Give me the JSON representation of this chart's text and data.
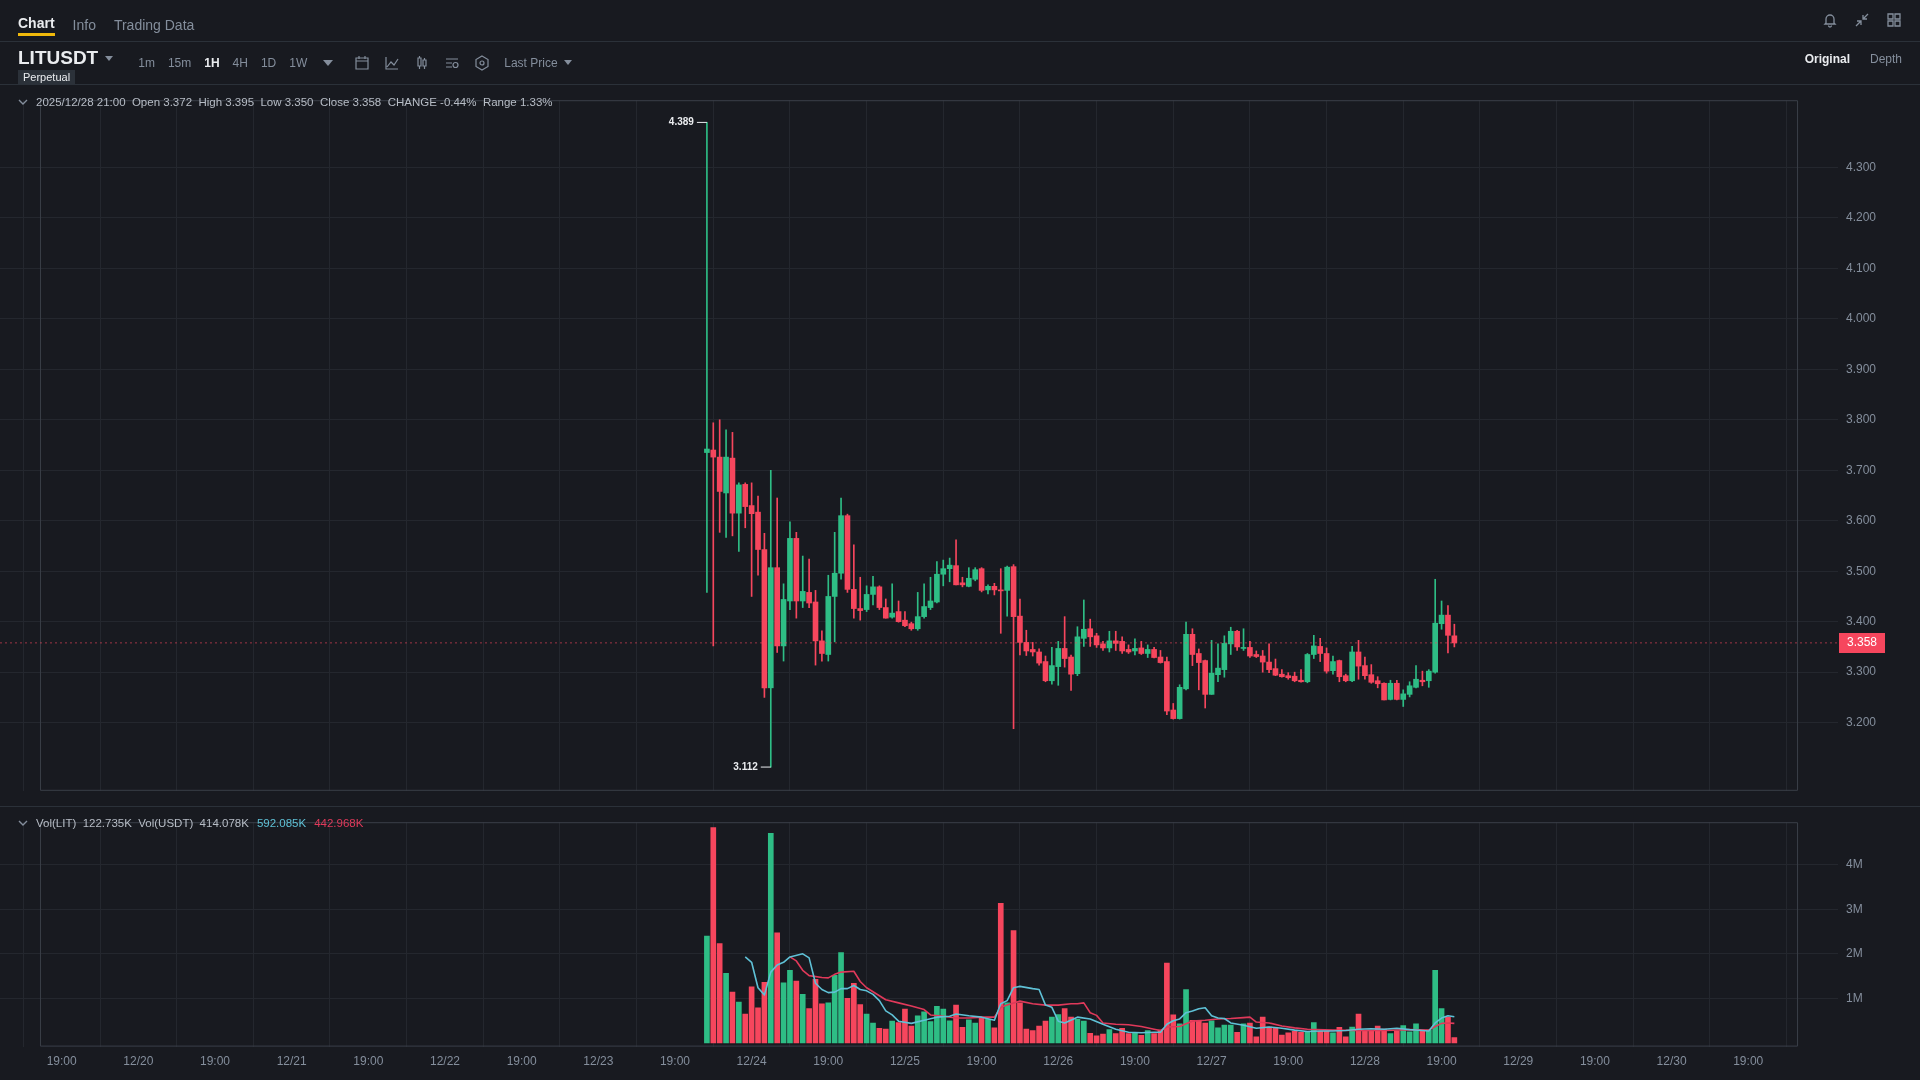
{
  "chart_data": [
    {
      "type": "candlestick",
      "title": "LITUSDT",
      "subtitle": "2025/12/28 21:00  Open 3.372  High 3.395  Low 3.350  Close 3.358  CHANGE -0.44%  Range 1.33%",
      "annotations": [
        "Chart",
        "Info",
        "Trading Data",
        "1m",
        "15m",
        "1H",
        "4H",
        "1D",
        "1W",
        "Perpetual",
        "Last Price",
        "Original",
        "Depth",
        {
          "text": "4.389",
          "x": "2025-12-24T00:00",
          "y": 4.389
        },
        {
          "text": "3.112",
          "x": "2025-12-24T10:00",
          "y": 3.112
        }
      ],
      "x": [
        "2025-12-24T00:00",
        "2025-12-24T01:00",
        "2025-12-24T02:00",
        "2025-12-24T03:00",
        "2025-12-24T04:00",
        "2025-12-24T05:00",
        "2025-12-24T06:00",
        "2025-12-24T07:00",
        "2025-12-24T08:00",
        "2025-12-24T09:00",
        "2025-12-24T10:00",
        "2025-12-24T11:00",
        "2025-12-24T12:00",
        "2025-12-24T13:00",
        "2025-12-24T14:00",
        "2025-12-24T15:00",
        "2025-12-24T16:00",
        "2025-12-24T17:00",
        "2025-12-24T18:00",
        "2025-12-24T19:00",
        "2025-12-24T20:00",
        "2025-12-24T21:00",
        "2025-12-24T22:00",
        "2025-12-24T23:00",
        "2025-12-25T00:00",
        "2025-12-25T01:00",
        "2025-12-25T02:00",
        "2025-12-25T03:00",
        "2025-12-25T04:00",
        "2025-12-25T05:00",
        "2025-12-25T06:00",
        "2025-12-25T07:00",
        "2025-12-25T08:00",
        "2025-12-25T09:00",
        "2025-12-25T10:00",
        "2025-12-25T11:00",
        "2025-12-25T12:00",
        "2025-12-25T13:00",
        "2025-12-25T14:00",
        "2025-12-25T15:00",
        "2025-12-25T16:00",
        "2025-12-25T17:00",
        "2025-12-25T18:00",
        "2025-12-25T19:00",
        "2025-12-25T20:00",
        "2025-12-25T21:00",
        "2025-12-25T22:00",
        "2025-12-25T23:00",
        "2025-12-26T00:00",
        "2025-12-26T01:00",
        "2025-12-26T02:00",
        "2025-12-26T03:00",
        "2025-12-26T04:00",
        "2025-12-26T05:00",
        "2025-12-26T06:00",
        "2025-12-26T07:00",
        "2025-12-26T08:00",
        "2025-12-26T09:00",
        "2025-12-26T10:00",
        "2025-12-26T11:00",
        "2025-12-26T12:00",
        "2025-12-26T13:00",
        "2025-12-26T14:00",
        "2025-12-26T15:00",
        "2025-12-26T16:00",
        "2025-12-26T17:00",
        "2025-12-26T18:00",
        "2025-12-26T19:00",
        "2025-12-26T20:00",
        "2025-12-26T21:00",
        "2025-12-26T22:00",
        "2025-12-26T23:00",
        "2025-12-27T00:00",
        "2025-12-27T01:00",
        "2025-12-27T02:00",
        "2025-12-27T03:00",
        "2025-12-27T04:00",
        "2025-12-27T05:00",
        "2025-12-27T06:00",
        "2025-12-27T07:00",
        "2025-12-27T08:00",
        "2025-12-27T09:00",
        "2025-12-27T10:00",
        "2025-12-27T11:00",
        "2025-12-27T12:00",
        "2025-12-27T13:00",
        "2025-12-27T14:00",
        "2025-12-27T15:00",
        "2025-12-27T16:00",
        "2025-12-27T17:00",
        "2025-12-27T18:00",
        "2025-12-27T19:00",
        "2025-12-27T20:00",
        "2025-12-27T21:00",
        "2025-12-27T22:00",
        "2025-12-27T23:00",
        "2025-12-28T00:00",
        "2025-12-28T01:00",
        "2025-12-28T02:00",
        "2025-12-28T03:00",
        "2025-12-28T04:00",
        "2025-12-28T05:00",
        "2025-12-28T06:00",
        "2025-12-28T07:00",
        "2025-12-28T08:00",
        "2025-12-28T09:00",
        "2025-12-28T10:00",
        "2025-12-28T11:00",
        "2025-12-28T12:00",
        "2025-12-28T13:00",
        "2025-12-28T14:00",
        "2025-12-28T15:00",
        "2025-12-28T16:00",
        "2025-12-28T17:00",
        "2025-12-28T18:00",
        "2025-12-28T19:00",
        "2025-12-28T20:00",
        "2025-12-28T21:00"
      ],
      "ohlc": [
        [
          3.735,
          4.389,
          3.458,
          3.742
        ],
        [
          3.74,
          3.794,
          3.352,
          3.726
        ],
        [
          3.726,
          3.8,
          3.577,
          3.658
        ],
        [
          3.655,
          3.78,
          3.567,
          3.726
        ],
        [
          3.724,
          3.775,
          3.57,
          3.615
        ],
        [
          3.615,
          3.675,
          3.539,
          3.671
        ],
        [
          3.672,
          3.675,
          3.586,
          3.628
        ],
        [
          3.63,
          3.675,
          3.45,
          3.614
        ],
        [
          3.617,
          3.649,
          3.492,
          3.543
        ],
        [
          3.543,
          3.575,
          3.25,
          3.269
        ],
        [
          3.269,
          3.7,
          3.112,
          3.507
        ],
        [
          3.507,
          3.645,
          3.339,
          3.352
        ],
        [
          3.352,
          3.475,
          3.322,
          3.444
        ],
        [
          3.441,
          3.598,
          3.424,
          3.565
        ],
        [
          3.565,
          3.577,
          3.407,
          3.441
        ],
        [
          3.441,
          3.53,
          3.428,
          3.46
        ],
        [
          3.458,
          3.524,
          3.428,
          3.437
        ],
        [
          3.439,
          3.462,
          3.314,
          3.362
        ],
        [
          3.362,
          3.382,
          3.322,
          3.337
        ],
        [
          3.335,
          3.492,
          3.322,
          3.45
        ],
        [
          3.45,
          3.577,
          3.36,
          3.496
        ],
        [
          3.496,
          3.645,
          3.484,
          3.61
        ],
        [
          3.61,
          3.613,
          3.458,
          3.464
        ],
        [
          3.464,
          3.552,
          3.407,
          3.426
        ],
        [
          3.426,
          3.488,
          3.403,
          3.422
        ],
        [
          3.424,
          3.471,
          3.42,
          3.454
        ],
        [
          3.454,
          3.49,
          3.433,
          3.469
        ],
        [
          3.469,
          3.471,
          3.424,
          3.428
        ],
        [
          3.428,
          3.445,
          3.407,
          3.407
        ],
        [
          3.409,
          3.475,
          3.407,
          3.417
        ],
        [
          3.42,
          3.441,
          3.399,
          3.4
        ],
        [
          3.403,
          3.42,
          3.39,
          3.392
        ],
        [
          3.396,
          3.399,
          3.383,
          3.386
        ],
        [
          3.386,
          3.458,
          3.383,
          3.41
        ],
        [
          3.41,
          3.475,
          3.407,
          3.43
        ],
        [
          3.428,
          3.488,
          3.424,
          3.441
        ],
        [
          3.439,
          3.519,
          3.437,
          3.494
        ],
        [
          3.494,
          3.522,
          3.471,
          3.505
        ],
        [
          3.505,
          3.526,
          3.479,
          3.512
        ],
        [
          3.511,
          3.562,
          3.473,
          3.473
        ],
        [
          3.477,
          3.488,
          3.469,
          3.473
        ],
        [
          3.47,
          3.507,
          3.469,
          3.486
        ],
        [
          3.484,
          3.507,
          3.481,
          3.503
        ],
        [
          3.505,
          3.507,
          3.459,
          3.462
        ],
        [
          3.463,
          3.473,
          3.455,
          3.47
        ],
        [
          3.47,
          3.476,
          3.453,
          3.463
        ],
        [
          3.463,
          3.505,
          3.377,
          3.461
        ],
        [
          3.462,
          3.51,
          3.411,
          3.508
        ],
        [
          3.509,
          3.513,
          3.188,
          3.41
        ],
        [
          3.411,
          3.445,
          3.334,
          3.359
        ],
        [
          3.359,
          3.383,
          3.333,
          3.342
        ],
        [
          3.345,
          3.359,
          3.332,
          3.34
        ],
        [
          3.34,
          3.346,
          3.314,
          3.318
        ],
        [
          3.321,
          3.332,
          3.281,
          3.283
        ],
        [
          3.283,
          3.349,
          3.276,
          3.313
        ],
        [
          3.311,
          3.361,
          3.274,
          3.347
        ],
        [
          3.347,
          3.41,
          3.31,
          3.327
        ],
        [
          3.33,
          3.334,
          3.264,
          3.296
        ],
        [
          3.297,
          3.39,
          3.293,
          3.37
        ],
        [
          3.367,
          3.443,
          3.351,
          3.385
        ],
        [
          3.386,
          3.405,
          3.351,
          3.37
        ],
        [
          3.372,
          3.377,
          3.349,
          3.354
        ],
        [
          3.356,
          3.361,
          3.343,
          3.348
        ],
        [
          3.348,
          3.381,
          3.34,
          3.362
        ],
        [
          3.362,
          3.381,
          3.343,
          3.357
        ],
        [
          3.361,
          3.37,
          3.337,
          3.342
        ],
        [
          3.345,
          3.354,
          3.337,
          3.34
        ],
        [
          3.342,
          3.366,
          3.334,
          3.347
        ],
        [
          3.348,
          3.361,
          3.335,
          3.337
        ],
        [
          3.337,
          3.354,
          3.329,
          3.345
        ],
        [
          3.345,
          3.349,
          3.328,
          3.329
        ],
        [
          3.33,
          3.343,
          3.318,
          3.319
        ],
        [
          3.321,
          3.33,
          3.216,
          3.223
        ],
        [
          3.225,
          3.238,
          3.207,
          3.208
        ],
        [
          3.208,
          3.275,
          3.207,
          3.27
        ],
        [
          3.267,
          3.399,
          3.265,
          3.375
        ],
        [
          3.375,
          3.386,
          3.313,
          3.335
        ],
        [
          3.337,
          3.346,
          3.265,
          3.319
        ],
        [
          3.323,
          3.324,
          3.229,
          3.256
        ],
        [
          3.256,
          3.363,
          3.256,
          3.298
        ],
        [
          3.295,
          3.356,
          3.281,
          3.308
        ],
        [
          3.305,
          3.372,
          3.29,
          3.357
        ],
        [
          3.356,
          3.389,
          3.335,
          3.381
        ],
        [
          3.381,
          3.383,
          3.343,
          3.35
        ],
        [
          3.347,
          3.386,
          3.343,
          3.349
        ],
        [
          3.349,
          3.361,
          3.329,
          3.332
        ],
        [
          3.335,
          3.342,
          3.329,
          3.331
        ],
        [
          3.332,
          3.343,
          3.3,
          3.32
        ],
        [
          3.32,
          3.356,
          3.299,
          3.305
        ],
        [
          3.307,
          3.326,
          3.293,
          3.294
        ],
        [
          3.296,
          3.305,
          3.29,
          3.291
        ],
        [
          3.293,
          3.299,
          3.286,
          3.289
        ],
        [
          3.292,
          3.3,
          3.281,
          3.283
        ],
        [
          3.284,
          3.305,
          3.28,
          3.281
        ],
        [
          3.281,
          3.337,
          3.279,
          3.335
        ],
        [
          3.335,
          3.373,
          3.327,
          3.352
        ],
        [
          3.351,
          3.367,
          3.321,
          3.337
        ],
        [
          3.337,
          3.348,
          3.298,
          3.302
        ],
        [
          3.303,
          3.332,
          3.296,
          3.321
        ],
        [
          3.323,
          3.324,
          3.281,
          3.291
        ],
        [
          3.293,
          3.296,
          3.281,
          3.283
        ],
        [
          3.283,
          3.351,
          3.281,
          3.34
        ],
        [
          3.34,
          3.363,
          3.286,
          3.312
        ],
        [
          3.313,
          3.33,
          3.286,
          3.293
        ],
        [
          3.295,
          3.315,
          3.278,
          3.28
        ],
        [
          3.283,
          3.291,
          3.269,
          3.277
        ],
        [
          3.278,
          3.279,
          3.245,
          3.245
        ],
        [
          3.246,
          3.284,
          3.245,
          3.278
        ],
        [
          3.278,
          3.284,
          3.245,
          3.246
        ],
        [
          3.246,
          3.265,
          3.232,
          3.257
        ],
        [
          3.256,
          3.281,
          3.251,
          3.273
        ],
        [
          3.27,
          3.313,
          3.269,
          3.286
        ],
        [
          3.284,
          3.302,
          3.273,
          3.281
        ],
        [
          3.283,
          3.305,
          3.27,
          3.302
        ],
        [
          3.3,
          3.484,
          3.298,
          3.397
        ],
        [
          3.396,
          3.441,
          3.385,
          3.413
        ],
        [
          3.413,
          3.432,
          3.338,
          3.373
        ],
        [
          3.372,
          3.395,
          3.35,
          3.358
        ]
      ],
      "colors": [
        "#2ebd85",
        "#f6465d",
        "#f6465d",
        "#2ebd85",
        "#f6465d",
        "#2ebd85",
        "#f6465d",
        "#f6465d",
        "#f6465d",
        "#f6465d",
        "#2ebd85",
        "#f6465d",
        "#2ebd85",
        "#2ebd85",
        "#f6465d",
        "#2ebd85",
        "#f6465d",
        "#f6465d",
        "#f6465d",
        "#2ebd85",
        "#2ebd85",
        "#2ebd85",
        "#f6465d",
        "#f6465d",
        "#f6465d",
        "#2ebd85",
        "#2ebd85",
        "#f6465d",
        "#f6465d",
        "#2ebd85",
        "#f6465d",
        "#f6465d",
        "#f6465d",
        "#2ebd85",
        "#2ebd85",
        "#2ebd85",
        "#2ebd85",
        "#2ebd85",
        "#2ebd85",
        "#f6465d",
        "#f6465d",
        "#2ebd85",
        "#2ebd85",
        "#f6465d",
        "#2ebd85",
        "#f6465d",
        "#f6465d",
        "#2ebd85",
        "#f6465d",
        "#f6465d",
        "#f6465d",
        "#f6465d",
        "#f6465d",
        "#f6465d",
        "#2ebd85",
        "#2ebd85",
        "#f6465d",
        "#f6465d",
        "#2ebd85",
        "#2ebd85",
        "#f6465d",
        "#f6465d",
        "#f6465d",
        "#2ebd85",
        "#f6465d",
        "#f6465d",
        "#f6465d",
        "#2ebd85",
        "#f6465d",
        "#2ebd85",
        "#f6465d",
        "#f6465d",
        "#f6465d",
        "#f6465d",
        "#2ebd85",
        "#2ebd85",
        "#f6465d",
        "#f6465d",
        "#f6465d",
        "#2ebd85",
        "#2ebd85",
        "#2ebd85",
        "#2ebd85",
        "#f6465d",
        "#2ebd85",
        "#f6465d",
        "#f6465d",
        "#f6465d",
        "#f6465d",
        "#f6465d",
        "#f6465d",
        "#f6465d",
        "#f6465d",
        "#f6465d",
        "#2ebd85",
        "#2ebd85",
        "#f6465d",
        "#f6465d",
        "#2ebd85",
        "#f6465d",
        "#f6465d",
        "#2ebd85",
        "#f6465d",
        "#f6465d",
        "#f6465d",
        "#f6465d",
        "#f6465d",
        "#2ebd85",
        "#f6465d",
        "#2ebd85",
        "#2ebd85",
        "#2ebd85",
        "#f6465d",
        "#2ebd85",
        "#2ebd85",
        "#2ebd85",
        "#f6465d",
        "#f6465d"
      ],
      "xlim": [
        "2025-12-19T15:36",
        "2025-12-31T02:48"
      ],
      "xticks": [
        {
          "value": "2025-12-19T19:00",
          "label": null
        },
        {
          "value": "2025-12-20T07:00",
          "label": null
        },
        {
          "value": "2025-12-20T19:00",
          "label": null
        },
        {
          "value": "2025-12-21T07:00",
          "label": null
        },
        {
          "value": "2025-12-21T19:00",
          "label": null
        },
        {
          "value": "2025-12-22T07:00",
          "label": null
        },
        {
          "value": "2025-12-22T19:00",
          "label": null
        },
        {
          "value": "2025-12-23T07:00",
          "label": null
        },
        {
          "value": "2025-12-23T19:00",
          "label": null
        },
        {
          "value": "2025-12-24T07:00",
          "label": null
        },
        {
          "value": "2025-12-24T19:00",
          "label": null
        },
        {
          "value": "2025-12-25T07:00",
          "label": null
        },
        {
          "value": "2025-12-25T19:00",
          "label": null
        },
        {
          "value": "2025-12-26T07:00",
          "label": null
        },
        {
          "value": "2025-12-26T19:00",
          "label": null
        },
        {
          "value": "2025-12-27T07:00",
          "label": null
        },
        {
          "value": "2025-12-27T19:00",
          "label": null
        },
        {
          "value": "2025-12-28T07:00",
          "label": null
        },
        {
          "value": "2025-12-28T19:00",
          "label": null
        },
        {
          "value": "2025-12-29T07:00",
          "label": null
        },
        {
          "value": "2025-12-29T19:00",
          "label": null
        },
        {
          "value": "2025-12-30T07:00",
          "label": null
        },
        {
          "value": "2025-12-30T19:00",
          "label": null
        }
      ],
      "ylim": [
        3.065,
        4.433
      ],
      "yticks": [
        {
          "value": 3.2,
          "label": "3.200"
        },
        {
          "value": 3.3,
          "label": "3.300"
        },
        {
          "value": 3.4,
          "label": "3.400"
        },
        {
          "value": 3.5,
          "label": "3.500"
        },
        {
          "value": 3.6,
          "label": "3.600"
        },
        {
          "value": 3.7,
          "label": "3.700"
        },
        {
          "value": 3.8,
          "label": "3.800"
        },
        {
          "value": 3.9,
          "label": "3.900"
        },
        {
          "value": 4.0,
          "label": "4.000"
        },
        {
          "value": 4.1,
          "label": "4.100"
        },
        {
          "value": 4.2,
          "label": "4.200"
        },
        {
          "value": 4.3,
          "label": "4.300"
        }
      ],
      "ref_lines": [
        {
          "axis": "y",
          "value": 3.358,
          "label": "3.358",
          "color": "#f6465d",
          "line_style": "dotted"
        }
      ],
      "tick_labels": "y",
      "grid": true
    },
    {
      "type": "bar",
      "subtitle": "Vol(LIT)  122.735K  Vol(USDT)  414.078K",
      "legend": "top left",
      "x": [
        "2025-12-24T00:00",
        "2025-12-24T01:00",
        "2025-12-24T02:00",
        "2025-12-24T03:00",
        "2025-12-24T04:00",
        "2025-12-24T05:00",
        "2025-12-24T06:00",
        "2025-12-24T07:00",
        "2025-12-24T08:00",
        "2025-12-24T09:00",
        "2025-12-24T10:00",
        "2025-12-24T11:00",
        "2025-12-24T12:00",
        "2025-12-24T13:00",
        "2025-12-24T14:00",
        "2025-12-24T15:00",
        "2025-12-24T16:00",
        "2025-12-24T17:00",
        "2025-12-24T18:00",
        "2025-12-24T19:00",
        "2025-12-24T20:00",
        "2025-12-24T21:00",
        "2025-12-24T22:00",
        "2025-12-24T23:00",
        "2025-12-25T00:00",
        "2025-12-25T01:00",
        "2025-12-25T02:00",
        "2025-12-25T03:00",
        "2025-12-25T04:00",
        "2025-12-25T05:00",
        "2025-12-25T06:00",
        "2025-12-25T07:00",
        "2025-12-25T08:00",
        "2025-12-25T09:00",
        "2025-12-25T10:00",
        "2025-12-25T11:00",
        "2025-12-25T12:00",
        "2025-12-25T13:00",
        "2025-12-25T14:00",
        "2025-12-25T15:00",
        "2025-12-25T16:00",
        "2025-12-25T17:00",
        "2025-12-25T18:00",
        "2025-12-25T19:00",
        "2025-12-25T20:00",
        "2025-12-25T21:00",
        "2025-12-25T22:00",
        "2025-12-25T23:00",
        "2025-12-26T00:00",
        "2025-12-26T01:00",
        "2025-12-26T02:00",
        "2025-12-26T03:00",
        "2025-12-26T04:00",
        "2025-12-26T05:00",
        "2025-12-26T06:00",
        "2025-12-26T07:00",
        "2025-12-26T08:00",
        "2025-12-26T09:00",
        "2025-12-26T10:00",
        "2025-12-26T11:00",
        "2025-12-26T12:00",
        "2025-12-26T13:00",
        "2025-12-26T14:00",
        "2025-12-26T15:00",
        "2025-12-26T16:00",
        "2025-12-26T17:00",
        "2025-12-26T18:00",
        "2025-12-26T19:00",
        "2025-12-26T20:00",
        "2025-12-26T21:00",
        "2025-12-26T22:00",
        "2025-12-26T23:00",
        "2025-12-27T00:00",
        "2025-12-27T01:00",
        "2025-12-27T02:00",
        "2025-12-27T03:00",
        "2025-12-27T04:00",
        "2025-12-27T05:00",
        "2025-12-27T06:00",
        "2025-12-27T07:00",
        "2025-12-27T08:00",
        "2025-12-27T09:00",
        "2025-12-27T10:00",
        "2025-12-27T11:00",
        "2025-12-27T12:00",
        "2025-12-27T13:00",
        "2025-12-27T14:00",
        "2025-12-27T15:00",
        "2025-12-27T16:00",
        "2025-12-27T17:00",
        "2025-12-27T18:00",
        "2025-12-27T19:00",
        "2025-12-27T20:00",
        "2025-12-27T21:00",
        "2025-12-27T22:00",
        "2025-12-27T23:00",
        "2025-12-28T00:00",
        "2025-12-28T01:00",
        "2025-12-28T02:00",
        "2025-12-28T03:00",
        "2025-12-28T04:00",
        "2025-12-28T05:00",
        "2025-12-28T06:00",
        "2025-12-28T07:00",
        "2025-12-28T08:00",
        "2025-12-28T09:00",
        "2025-12-28T10:00",
        "2025-12-28T11:00",
        "2025-12-28T12:00",
        "2025-12-28T13:00",
        "2025-12-28T14:00",
        "2025-12-28T15:00",
        "2025-12-28T16:00",
        "2025-12-28T17:00",
        "2025-12-28T18:00",
        "2025-12-28T19:00",
        "2025-12-28T20:00",
        "2025-12-28T21:00"
      ],
      "series": [
        {
          "values": [
            2.4,
            4.83,
            2.23,
            1.56,
            1.14,
            0.92,
            0.65,
            1.26,
            0.79,
            1.36,
            4.7,
            2.47,
            1.35,
            1.63,
            1.39,
            1.09,
            0.77,
            1.43,
            0.88,
            0.9,
            1.52,
            2.03,
            1.0,
            1.34,
            0.86,
            0.65,
            0.45,
            0.33,
            0.31,
            0.49,
            0.46,
            0.76,
            0.38,
            0.61,
            0.7,
            0.48,
            0.82,
            0.76,
            0.5,
            0.85,
            0.35,
            0.52,
            0.45,
            0.56,
            0.53,
            0.34,
            3.13,
            0.9,
            2.52,
            0.9,
            0.31,
            0.28,
            0.38,
            0.49,
            0.58,
            0.64,
            0.77,
            0.58,
            0.53,
            0.49,
            0.22,
            0.16,
            0.2,
            0.3,
            0.21,
            0.33,
            0.21,
            0.22,
            0.17,
            0.28,
            0.21,
            0.29,
            1.79,
            0.63,
            0.43,
            1.2,
            0.51,
            0.51,
            0.45,
            0.5,
            0.34,
            0.4,
            0.4,
            0.24,
            0.43,
            0.45,
            0.14,
            0.58,
            0.36,
            0.34,
            0.18,
            0.23,
            0.26,
            0.24,
            0.24,
            0.46,
            0.26,
            0.26,
            0.23,
            0.35,
            0.14,
            0.36,
            0.65,
            0.28,
            0.28,
            0.38,
            0.31,
            0.21,
            0.27,
            0.39,
            0.25,
            0.43,
            0.28,
            0.29,
            1.63,
            0.77,
            0.58,
            0.12
          ],
          "colors": [
            "#2ebd85",
            "#f6465d",
            "#f6465d",
            "#2ebd85",
            "#f6465d",
            "#2ebd85",
            "#f6465d",
            "#f6465d",
            "#f6465d",
            "#f6465d",
            "#2ebd85",
            "#f6465d",
            "#2ebd85",
            "#2ebd85",
            "#f6465d",
            "#2ebd85",
            "#f6465d",
            "#f6465d",
            "#f6465d",
            "#2ebd85",
            "#2ebd85",
            "#2ebd85",
            "#f6465d",
            "#f6465d",
            "#f6465d",
            "#2ebd85",
            "#2ebd85",
            "#f6465d",
            "#f6465d",
            "#2ebd85",
            "#f6465d",
            "#f6465d",
            "#f6465d",
            "#2ebd85",
            "#2ebd85",
            "#2ebd85",
            "#2ebd85",
            "#2ebd85",
            "#2ebd85",
            "#f6465d",
            "#f6465d",
            "#2ebd85",
            "#2ebd85",
            "#f6465d",
            "#2ebd85",
            "#f6465d",
            "#f6465d",
            "#2ebd85",
            "#f6465d",
            "#f6465d",
            "#f6465d",
            "#f6465d",
            "#f6465d",
            "#f6465d",
            "#2ebd85",
            "#2ebd85",
            "#f6465d",
            "#f6465d",
            "#2ebd85",
            "#2ebd85",
            "#f6465d",
            "#f6465d",
            "#f6465d",
            "#2ebd85",
            "#f6465d",
            "#f6465d",
            "#f6465d",
            "#2ebd85",
            "#f6465d",
            "#2ebd85",
            "#f6465d",
            "#f6465d",
            "#f6465d",
            "#f6465d",
            "#2ebd85",
            "#2ebd85",
            "#f6465d",
            "#f6465d",
            "#f6465d",
            "#2ebd85",
            "#2ebd85",
            "#2ebd85",
            "#2ebd85",
            "#f6465d",
            "#2ebd85",
            "#f6465d",
            "#f6465d",
            "#f6465d",
            "#f6465d",
            "#f6465d",
            "#f6465d",
            "#f6465d",
            "#f6465d",
            "#f6465d",
            "#2ebd85",
            "#2ebd85",
            "#f6465d",
            "#f6465d",
            "#2ebd85",
            "#f6465d",
            "#f6465d",
            "#2ebd85",
            "#f6465d",
            "#f6465d",
            "#f6465d",
            "#f6465d",
            "#f6465d",
            "#2ebd85",
            "#f6465d",
            "#2ebd85",
            "#2ebd85",
            "#2ebd85",
            "#f6465d",
            "#2ebd85",
            "#2ebd85",
            "#2ebd85",
            "#f6465d",
            "#f6465d"
          ]
        },
        {
          "type": "line",
          "name": "592.085K",
          "color": "#5fc1d6",
          "x": [
            "2025-12-24T06:00",
            "2025-12-24T07:00",
            "2025-12-24T08:00",
            "2025-12-24T09:00",
            "2025-12-24T10:00",
            "2025-12-24T11:00",
            "2025-12-24T12:00",
            "2025-12-24T13:00",
            "2025-12-24T15:00",
            "2025-12-24T16:00",
            "2025-12-24T17:00",
            "2025-12-24T18:00",
            "2025-12-24T19:00",
            "2025-12-24T20:00",
            "2025-12-24T21:00",
            "2025-12-24T22:00",
            "2025-12-24T23:00",
            "2025-12-25T00:00",
            "2025-12-25T01:00",
            "2025-12-25T02:00",
            "2025-12-25T03:00",
            "2025-12-25T04:00",
            "2025-12-25T05:00",
            "2025-12-25T06:00",
            "2025-12-25T08:00",
            "2025-12-25T10:00",
            "2025-12-25T12:00",
            "2025-12-25T14:00",
            "2025-12-25T15:00",
            "2025-12-25T17:00",
            "2025-12-25T19:00",
            "2025-12-25T21:00",
            "2025-12-25T22:00",
            "2025-12-25T23:00",
            "2025-12-26T00:00",
            "2025-12-26T01:00",
            "2025-12-26T03:00",
            "2025-12-26T04:00",
            "2025-12-26T05:00",
            "2025-12-26T06:00",
            "2025-12-26T07:00",
            "2025-12-26T08:00",
            "2025-12-26T10:00",
            "2025-12-26T12:00",
            "2025-12-26T14:00",
            "2025-12-26T16:00",
            "2025-12-26T18:00",
            "2025-12-26T20:00",
            "2025-12-26T22:00",
            "2025-12-26T23:00",
            "2025-12-27T00:00",
            "2025-12-27T01:00",
            "2025-12-27T02:00",
            "2025-12-27T03:00",
            "2025-12-27T04:00",
            "2025-12-27T05:00",
            "2025-12-27T06:00",
            "2025-12-27T07:00",
            "2025-12-27T08:00",
            "2025-12-27T09:00",
            "2025-12-27T10:00",
            "2025-12-27T12:00",
            "2025-12-27T14:00",
            "2025-12-27T16:00",
            "2025-12-27T18:00",
            "2025-12-27T20:00",
            "2025-12-27T22:00",
            "2025-12-28T00:00",
            "2025-12-28T02:00",
            "2025-12-28T04:00",
            "2025-12-28T06:00",
            "2025-12-28T08:00",
            "2025-12-28T10:00",
            "2025-12-28T12:00",
            "2025-12-28T14:00",
            "2025-12-28T16:00",
            "2025-12-28T17:00",
            "2025-12-28T18:00",
            "2025-12-28T19:00",
            "2025-12-28T20:00",
            "2025-12-28T21:00"
          ],
          "values": [
            1.93,
            1.81,
            1.24,
            1.08,
            1.59,
            1.75,
            1.81,
            1.93,
            2.0,
            1.91,
            1.34,
            1.2,
            1.13,
            1.14,
            1.22,
            1.22,
            1.29,
            1.2,
            1.17,
            1.09,
            0.95,
            0.72,
            0.63,
            0.49,
            0.44,
            0.51,
            0.58,
            0.6,
            0.65,
            0.61,
            0.58,
            0.51,
            0.88,
            0.95,
            1.24,
            1.27,
            1.22,
            1.2,
            0.85,
            0.8,
            0.49,
            0.45,
            0.58,
            0.54,
            0.42,
            0.31,
            0.24,
            0.23,
            0.24,
            0.24,
            0.42,
            0.5,
            0.54,
            0.68,
            0.72,
            0.77,
            0.79,
            0.61,
            0.56,
            0.55,
            0.45,
            0.4,
            0.33,
            0.36,
            0.33,
            0.29,
            0.26,
            0.27,
            0.27,
            0.28,
            0.31,
            0.32,
            0.31,
            0.33,
            0.3,
            0.28,
            0.27,
            0.45,
            0.56,
            0.61,
            0.59
          ]
        },
        {
          "type": "line",
          "name": "442.968K",
          "color": "#e0395a",
          "x": [
            "2025-12-24T13:00",
            "2025-12-24T14:00",
            "2025-12-24T15:00",
            "2025-12-24T16:00",
            "2025-12-24T18:00",
            "2025-12-24T19:00",
            "2025-12-24T20:00",
            "2025-12-24T21:00",
            "2025-12-24T23:00",
            "2025-12-25T00:00",
            "2025-12-25T01:00",
            "2025-12-25T02:00",
            "2025-12-25T03:00",
            "2025-12-25T04:00",
            "2025-12-25T06:00",
            "2025-12-25T08:00",
            "2025-12-25T10:00",
            "2025-12-25T11:00",
            "2025-12-25T13:00",
            "2025-12-25T15:00",
            "2025-12-25T17:00",
            "2025-12-25T19:00",
            "2025-12-25T21:00",
            "2025-12-25T22:00",
            "2025-12-25T23:00",
            "2025-12-26T01:00",
            "2025-12-26T03:00",
            "2025-12-26T05:00",
            "2025-12-26T07:00",
            "2025-12-26T09:00",
            "2025-12-26T10:00",
            "2025-12-26T11:00",
            "2025-12-26T12:00",
            "2025-12-26T13:00",
            "2025-12-26T14:00",
            "2025-12-26T16:00",
            "2025-12-26T18:00",
            "2025-12-26T20:00",
            "2025-12-26T22:00",
            "2025-12-26T23:00",
            "2025-12-27T00:00",
            "2025-12-27T02:00",
            "2025-12-27T03:00",
            "2025-12-27T04:00",
            "2025-12-27T06:00",
            "2025-12-27T08:00",
            "2025-12-27T10:00",
            "2025-12-27T12:00",
            "2025-12-27T13:00",
            "2025-12-27T14:00",
            "2025-12-27T16:00",
            "2025-12-27T18:00",
            "2025-12-27T20:00",
            "2025-12-27T22:00",
            "2025-12-28T02:00",
            "2025-12-28T06:00",
            "2025-12-28T10:00",
            "2025-12-28T14:00",
            "2025-12-28T17:00",
            "2025-12-28T18:00",
            "2025-12-28T19:00",
            "2025-12-28T20:00",
            "2025-12-28T21:00"
          ],
          "values": [
            1.93,
            1.84,
            1.63,
            1.51,
            1.47,
            1.46,
            1.54,
            1.59,
            1.61,
            1.38,
            1.24,
            1.15,
            1.06,
            0.97,
            0.9,
            0.83,
            0.75,
            0.63,
            0.6,
            0.56,
            0.56,
            0.58,
            0.58,
            0.8,
            0.85,
            0.94,
            0.88,
            0.85,
            0.85,
            0.88,
            0.88,
            0.9,
            0.68,
            0.62,
            0.45,
            0.42,
            0.41,
            0.37,
            0.31,
            0.28,
            0.36,
            0.37,
            0.43,
            0.49,
            0.51,
            0.54,
            0.55,
            0.57,
            0.58,
            0.47,
            0.45,
            0.38,
            0.34,
            0.31,
            0.29,
            0.28,
            0.28,
            0.3,
            0.29,
            0.37,
            0.44,
            0.45,
            0.44
          ]
        }
      ],
      "xlim": [
        "2025-12-19T15:36",
        "2025-12-31T02:48"
      ],
      "xticks": [
        {
          "value": "2025-12-19T19:00",
          "label": "19:00"
        },
        {
          "value": "2025-12-20T07:00",
          "label": "12/20"
        },
        {
          "value": "2025-12-20T19:00",
          "label": "19:00"
        },
        {
          "value": "2025-12-21T07:00",
          "label": "12/21"
        },
        {
          "value": "2025-12-21T19:00",
          "label": "19:00"
        },
        {
          "value": "2025-12-22T07:00",
          "label": "12/22"
        },
        {
          "value": "2025-12-22T19:00",
          "label": "19:00"
        },
        {
          "value": "2025-12-23T07:00",
          "label": "12/23"
        },
        {
          "value": "2025-12-23T19:00",
          "label": "19:00"
        },
        {
          "value": "2025-12-24T07:00",
          "label": "12/24"
        },
        {
          "value": "2025-12-24T19:00",
          "label": "19:00"
        },
        {
          "value": "2025-12-25T07:00",
          "label": "12/25"
        },
        {
          "value": "2025-12-25T19:00",
          "label": "19:00"
        },
        {
          "value": "2025-12-26T07:00",
          "label": "12/26"
        },
        {
          "value": "2025-12-26T19:00",
          "label": "19:00"
        },
        {
          "value": "2025-12-27T07:00",
          "label": "12/27"
        },
        {
          "value": "2025-12-27T19:00",
          "label": "19:00"
        },
        {
          "value": "2025-12-28T07:00",
          "label": "12/28"
        },
        {
          "value": "2025-12-28T19:00",
          "label": "19:00"
        },
        {
          "value": "2025-12-29T07:00",
          "label": "12/29"
        },
        {
          "value": "2025-12-29T19:00",
          "label": "19:00"
        },
        {
          "value": "2025-12-30T07:00",
          "label": "12/30"
        },
        {
          "value": "2025-12-30T19:00",
          "label": "19:00"
        }
      ],
      "ylim": [
        -0.08,
        4.95
      ],
      "yticks": [
        {
          "value": 1,
          "label": "1M"
        },
        {
          "value": 2,
          "label": "2M"
        },
        {
          "value": 3,
          "label": "3M"
        },
        {
          "value": 4,
          "label": "4M"
        }
      ],
      "grid": true
    }
  ]
}
